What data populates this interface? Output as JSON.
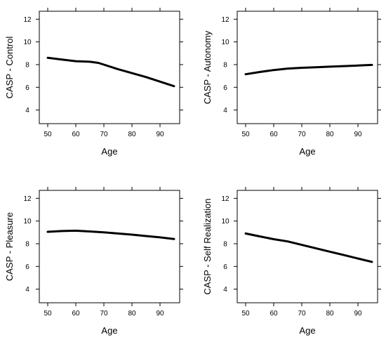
{
  "chart_data": [
    {
      "type": "line",
      "xlabel": "Age",
      "ylabel": "CASP - Control",
      "xlim": [
        47,
        97
      ],
      "ylim": [
        2.8,
        12.7
      ],
      "x_ticks": [
        50,
        60,
        70,
        80,
        90
      ],
      "y_ticks": [
        4,
        6,
        8,
        10,
        12
      ],
      "x": [
        50,
        55,
        60,
        65,
        68,
        70,
        75,
        80,
        85,
        90,
        95
      ],
      "values": [
        8.6,
        8.45,
        8.3,
        8.25,
        8.15,
        8.0,
        7.6,
        7.25,
        6.9,
        6.5,
        6.1
      ]
    },
    {
      "type": "line",
      "xlabel": "Age",
      "ylabel": "CASP - Autonomy",
      "xlim": [
        47,
        97
      ],
      "ylim": [
        2.8,
        12.7
      ],
      "x_ticks": [
        50,
        60,
        70,
        80,
        90
      ],
      "y_ticks": [
        4,
        6,
        8,
        10,
        12
      ],
      "x": [
        50,
        55,
        60,
        65,
        70,
        75,
        80,
        85,
        90,
        95
      ],
      "values": [
        7.15,
        7.35,
        7.52,
        7.65,
        7.72,
        7.77,
        7.82,
        7.87,
        7.92,
        7.97
      ]
    },
    {
      "type": "line",
      "xlabel": "Age",
      "ylabel": "CASP - Pleasure",
      "xlim": [
        47,
        97
      ],
      "ylim": [
        2.8,
        12.7
      ],
      "x_ticks": [
        50,
        60,
        70,
        80,
        90
      ],
      "y_ticks": [
        4,
        6,
        8,
        10,
        12
      ],
      "x": [
        50,
        55,
        60,
        65,
        70,
        75,
        80,
        85,
        90,
        95
      ],
      "values": [
        9.05,
        9.12,
        9.15,
        9.08,
        9.0,
        8.9,
        8.8,
        8.68,
        8.56,
        8.42
      ]
    },
    {
      "type": "line",
      "xlabel": "Age",
      "ylabel": "CASP - Self Realization",
      "xlim": [
        47,
        97
      ],
      "ylim": [
        2.8,
        12.7
      ],
      "x_ticks": [
        50,
        60,
        70,
        80,
        90
      ],
      "y_ticks": [
        4,
        6,
        8,
        10,
        12
      ],
      "x": [
        50,
        55,
        60,
        65,
        70,
        75,
        80,
        85,
        90,
        95
      ],
      "values": [
        8.9,
        8.65,
        8.4,
        8.2,
        7.9,
        7.6,
        7.3,
        7.0,
        6.7,
        6.4
      ]
    }
  ]
}
